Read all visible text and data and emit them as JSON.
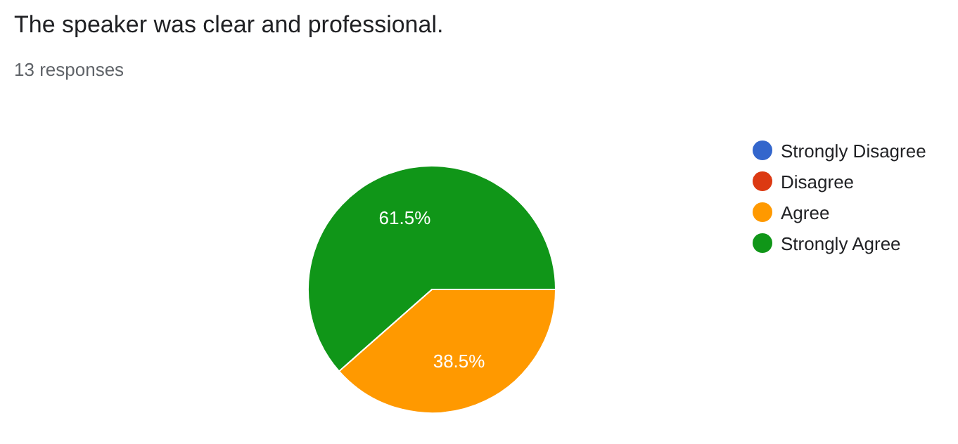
{
  "chart_data": {
    "type": "pie",
    "title": "The speaker was clear and professional.",
    "subtitle": "13 responses",
    "categories": [
      "Strongly Disagree",
      "Disagree",
      "Agree",
      "Strongly Agree"
    ],
    "values": [
      0,
      0,
      38.5,
      61.5
    ],
    "value_labels": [
      null,
      null,
      "38.5%",
      "61.5%"
    ],
    "colors": [
      "#3366cc",
      "#dc3912",
      "#ff9900",
      "#109618"
    ],
    "legend": "right"
  }
}
